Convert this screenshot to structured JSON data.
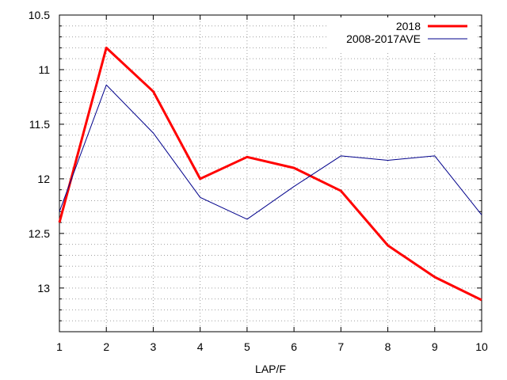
{
  "chart_data": {
    "type": "line",
    "xlabel": "LAP/F",
    "ylabel": "",
    "xlim": [
      1,
      10
    ],
    "ylim": [
      10.5,
      13.4
    ],
    "y_inverted": true,
    "grid": true,
    "legend_position": "top-right",
    "x_ticks": [
      "1",
      "2",
      "3",
      "4",
      "5",
      "6",
      "7",
      "8",
      "9",
      "10"
    ],
    "y_ticks": [
      "10.5",
      "11",
      "11.5",
      "12",
      "12.5",
      "13"
    ],
    "x": [
      1,
      2,
      3,
      4,
      5,
      6,
      7,
      8,
      9,
      10
    ],
    "series": [
      {
        "name": "2018",
        "color": "#ff0000",
        "values": [
          12.4,
          10.8,
          11.2,
          12.0,
          11.8,
          11.9,
          12.11,
          12.61,
          12.9,
          13.11
        ]
      },
      {
        "name": "2008-2017AVE",
        "color": "#00008b",
        "values": [
          12.3,
          11.14,
          11.58,
          12.17,
          12.37,
          12.07,
          11.79,
          11.83,
          11.79,
          12.33
        ]
      }
    ]
  }
}
